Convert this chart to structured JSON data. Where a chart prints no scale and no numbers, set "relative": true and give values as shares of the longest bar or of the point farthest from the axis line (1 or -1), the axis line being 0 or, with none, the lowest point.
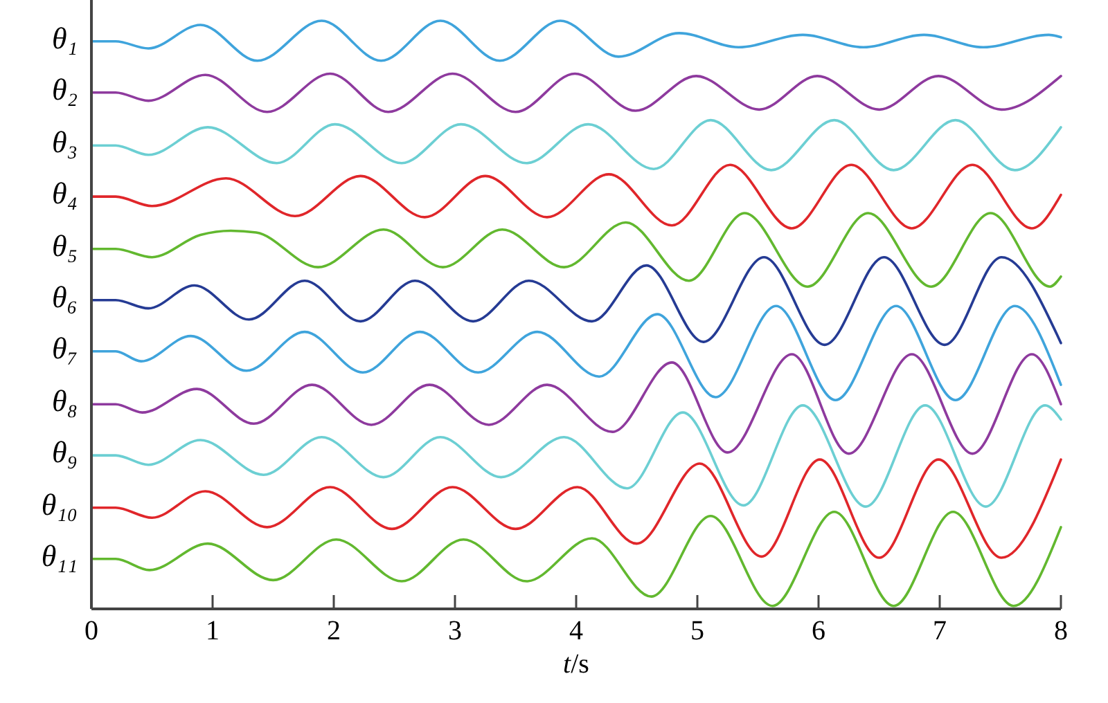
{
  "chart_data": {
    "type": "line",
    "xlabel": "t/s",
    "xlim": [
      0,
      8
    ],
    "xticks": [
      0,
      1,
      2,
      3,
      4,
      5,
      6,
      7,
      8
    ],
    "relative": true,
    "series": [
      {
        "name": "θ₁",
        "color": "#3fa4dc",
        "x": [
          0,
          0.2,
          0.47,
          0.9,
          1.37,
          1.9,
          2.39,
          2.88,
          3.37,
          3.87,
          4.35,
          4.85,
          5.34,
          5.87,
          6.37,
          6.87,
          7.36,
          7.9,
          8
        ],
        "values": [
          0.965,
          0.965,
          0.953,
          0.993,
          0.932,
          1.0,
          0.932,
          1.0,
          0.932,
          1.0,
          0.939,
          0.979,
          0.955,
          0.976,
          0.955,
          0.976,
          0.955,
          0.976,
          0.972
        ]
      },
      {
        "name": "θ₂",
        "color": "#8e3a9e",
        "x": [
          0,
          0.2,
          0.47,
          0.94,
          1.45,
          1.97,
          2.45,
          2.98,
          3.5,
          3.99,
          4.49,
          4.99,
          5.51,
          5.99,
          6.5,
          6.99,
          7.51,
          8
        ],
        "values": [
          0.878,
          0.878,
          0.864,
          0.908,
          0.845,
          0.91,
          0.845,
          0.91,
          0.845,
          0.91,
          0.847,
          0.906,
          0.849,
          0.906,
          0.849,
          0.906,
          0.849,
          0.906
        ]
      },
      {
        "name": "θ₃",
        "color": "#6ccfd3",
        "x": [
          0,
          0.2,
          0.47,
          0.96,
          1.53,
          2.01,
          2.56,
          3.05,
          3.59,
          4.1,
          4.64,
          5.11,
          5.61,
          6.13,
          6.62,
          7.13,
          7.62,
          8
        ],
        "values": [
          0.788,
          0.788,
          0.772,
          0.819,
          0.758,
          0.824,
          0.758,
          0.824,
          0.758,
          0.824,
          0.748,
          0.831,
          0.746,
          0.831,
          0.746,
          0.831,
          0.746,
          0.819
        ]
      },
      {
        "name": "θ₄",
        "color": "#e0262a",
        "x": [
          0,
          0.2,
          0.5,
          1.11,
          1.68,
          2.22,
          2.75,
          3.25,
          3.76,
          4.27,
          4.79,
          5.27,
          5.78,
          6.27,
          6.77,
          7.27,
          7.76,
          8
        ],
        "values": [
          0.701,
          0.701,
          0.685,
          0.732,
          0.668,
          0.736,
          0.666,
          0.736,
          0.666,
          0.739,
          0.652,
          0.755,
          0.647,
          0.755,
          0.647,
          0.755,
          0.647,
          0.704
        ]
      },
      {
        "name": "θ₅",
        "color": "#62b82f",
        "x": [
          0,
          0.2,
          0.5,
          0.9,
          1.15,
          1.36,
          1.87,
          2.41,
          2.9,
          3.39,
          3.9,
          4.41,
          4.93,
          5.39,
          5.91,
          6.41,
          6.93,
          7.42,
          7.91,
          8
        ],
        "values": [
          0.612,
          0.612,
          0.598,
          0.636,
          0.643,
          0.64,
          0.581,
          0.645,
          0.581,
          0.645,
          0.581,
          0.657,
          0.558,
          0.673,
          0.548,
          0.673,
          0.548,
          0.673,
          0.548,
          0.565
        ]
      },
      {
        "name": "θ₆",
        "color": "#253b94",
        "x": [
          0,
          0.2,
          0.47,
          0.85,
          1.3,
          1.76,
          2.22,
          2.67,
          3.15,
          3.61,
          4.13,
          4.58,
          5.05,
          5.55,
          6.05,
          6.54,
          7.04,
          7.51,
          8
        ],
        "values": [
          0.525,
          0.525,
          0.511,
          0.55,
          0.492,
          0.558,
          0.489,
          0.558,
          0.489,
          0.558,
          0.489,
          0.584,
          0.454,
          0.598,
          0.449,
          0.598,
          0.449,
          0.598,
          0.452
        ]
      },
      {
        "name": "θ₇",
        "color": "#3fa4dc",
        "x": [
          0,
          0.2,
          0.41,
          0.82,
          1.28,
          1.76,
          2.24,
          2.71,
          3.19,
          3.68,
          4.19,
          4.67,
          5.15,
          5.65,
          6.14,
          6.64,
          7.13,
          7.62,
          8
        ],
        "values": [
          0.438,
          0.438,
          0.421,
          0.464,
          0.405,
          0.471,
          0.402,
          0.471,
          0.402,
          0.471,
          0.395,
          0.501,
          0.36,
          0.515,
          0.355,
          0.515,
          0.355,
          0.515,
          0.381
        ]
      },
      {
        "name": "θ₈",
        "color": "#8e3a9e",
        "x": [
          0,
          0.2,
          0.42,
          0.87,
          1.34,
          1.82,
          2.31,
          2.79,
          3.28,
          3.76,
          4.3,
          4.79,
          5.25,
          5.78,
          6.25,
          6.77,
          7.27,
          7.76,
          8
        ],
        "values": [
          0.348,
          0.348,
          0.334,
          0.374,
          0.315,
          0.381,
          0.313,
          0.381,
          0.313,
          0.381,
          0.301,
          0.419,
          0.266,
          0.433,
          0.264,
          0.433,
          0.264,
          0.433,
          0.348
        ]
      },
      {
        "name": "θ₉",
        "color": "#6ccfd3",
        "x": [
          0,
          0.2,
          0.47,
          0.9,
          1.42,
          1.9,
          2.41,
          2.88,
          3.38,
          3.9,
          4.42,
          4.88,
          5.38,
          5.87,
          6.39,
          6.88,
          7.38,
          7.87,
          8
        ],
        "values": [
          0.261,
          0.261,
          0.245,
          0.287,
          0.228,
          0.292,
          0.224,
          0.292,
          0.224,
          0.292,
          0.205,
          0.334,
          0.176,
          0.346,
          0.174,
          0.346,
          0.174,
          0.346,
          0.322
        ]
      },
      {
        "name": "θ₁₀",
        "color": "#e0262a",
        "x": [
          0,
          0.2,
          0.5,
          0.94,
          1.45,
          1.97,
          2.48,
          2.98,
          3.5,
          4.01,
          4.5,
          5.02,
          5.53,
          6.01,
          6.5,
          6.99,
          7.51,
          8
        ],
        "values": [
          0.172,
          0.172,
          0.155,
          0.2,
          0.139,
          0.207,
          0.136,
          0.207,
          0.136,
          0.207,
          0.111,
          0.247,
          0.089,
          0.254,
          0.087,
          0.254,
          0.087,
          0.254
        ]
      },
      {
        "name": "θ₁₁",
        "color": "#62b82f",
        "x": [
          0,
          0.2,
          0.48,
          0.96,
          1.5,
          2.02,
          2.56,
          3.07,
          3.59,
          4.13,
          4.62,
          5.11,
          5.62,
          6.13,
          6.62,
          7.11,
          7.61,
          8
        ],
        "values": [
          0.085,
          0.085,
          0.066,
          0.111,
          0.049,
          0.118,
          0.047,
          0.118,
          0.047,
          0.12,
          0.021,
          0.158,
          0.005,
          0.165,
          0.005,
          0.165,
          0.005,
          0.139
        ]
      }
    ]
  }
}
